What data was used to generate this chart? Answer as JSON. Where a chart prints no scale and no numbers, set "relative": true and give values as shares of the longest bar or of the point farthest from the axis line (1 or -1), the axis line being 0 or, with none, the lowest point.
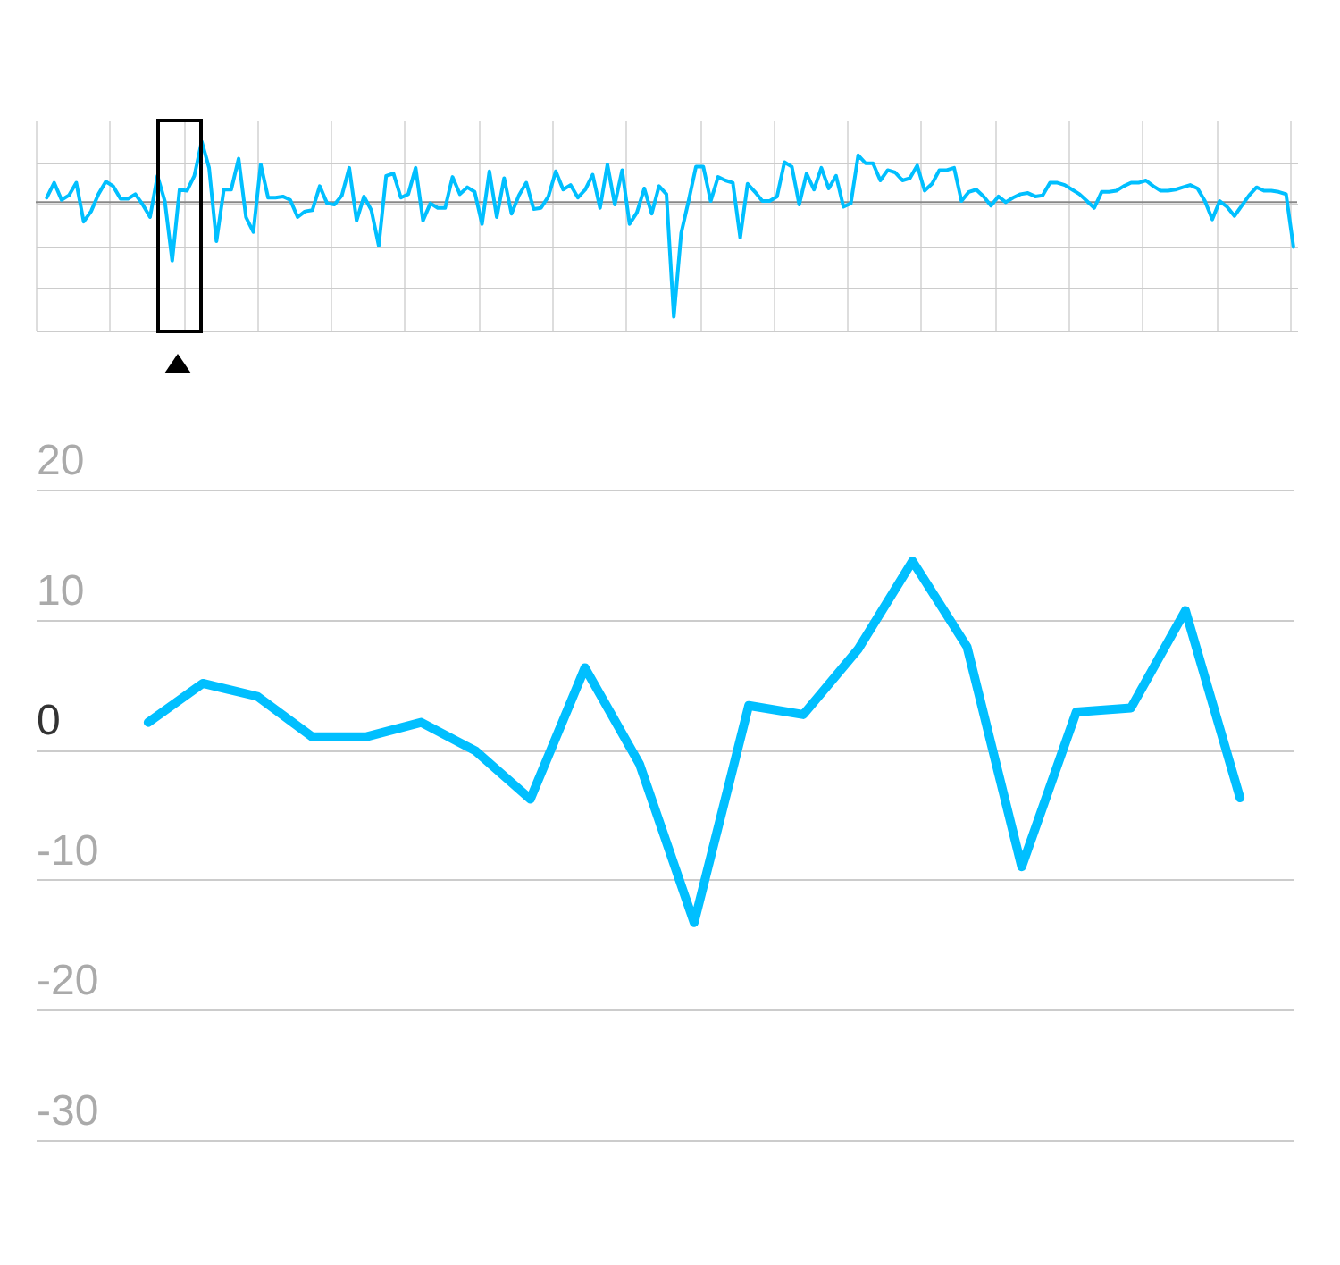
{
  "chart_data": [
    {
      "type": "line",
      "relative": true,
      "grid": true,
      "color": "#00bfff",
      "categories": [
        null,
        null,
        null,
        null,
        null,
        null,
        null,
        null,
        null,
        null,
        null,
        null,
        null,
        null,
        null,
        null,
        null,
        null,
        null,
        null,
        null,
        null,
        null,
        null,
        null,
        null,
        null,
        null,
        null,
        null,
        null,
        null,
        null,
        null,
        null,
        null,
        null,
        null,
        null,
        null,
        null,
        null,
        null,
        null,
        null,
        null,
        null,
        null,
        null,
        null,
        null,
        null,
        null,
        null,
        null,
        null,
        null,
        null,
        null,
        null,
        null,
        null,
        null,
        null,
        null,
        null,
        null,
        null,
        null,
        null,
        null,
        null,
        null,
        null,
        null,
        null,
        null,
        null,
        null,
        null,
        null,
        null,
        null,
        null,
        null,
        null,
        null,
        null,
        null,
        null,
        null,
        null,
        null,
        null,
        null,
        null,
        null,
        null,
        null,
        null,
        null,
        null,
        null,
        null,
        null,
        null,
        null,
        null,
        null,
        null,
        null,
        null,
        null,
        null,
        null,
        null,
        null,
        null,
        null,
        null,
        null,
        null,
        null,
        null,
        null,
        null,
        null,
        null,
        null,
        null,
        null,
        null,
        null,
        null,
        null,
        null,
        null,
        null,
        null,
        null,
        null,
        null,
        null,
        null,
        null,
        null,
        null,
        null,
        null,
        null,
        null,
        null,
        null,
        null,
        null,
        null,
        null,
        null,
        null,
        null,
        null,
        null,
        null,
        null,
        null,
        null,
        null,
        null,
        null,
        null
      ],
      "values": [
        0.04,
        0.17,
        0.02,
        0.06,
        0.17,
        -0.17,
        -0.08,
        0.07,
        0.18,
        0.14,
        0.03,
        0.03,
        0.07,
        -0.02,
        -0.13,
        0.23,
        0.01,
        -0.51,
        0.11,
        0.1,
        0.23,
        0.53,
        0.3,
        -0.34,
        0.11,
        0.11,
        0.38,
        -0.13,
        -0.26,
        0.33,
        0.04,
        0.04,
        0.05,
        0.02,
        -0.13,
        -0.08,
        -0.07,
        0.14,
        -0.01,
        -0.02,
        0.06,
        0.3,
        -0.16,
        0.05,
        -0.07,
        -0.38,
        0.23,
        0.25,
        0.04,
        0.07,
        0.3,
        -0.16,
        -0.01,
        -0.05,
        -0.05,
        0.22,
        0.07,
        0.13,
        0.09,
        -0.19,
        0.27,
        -0.13,
        0.21,
        -0.1,
        0.06,
        0.17,
        -0.06,
        -0.05,
        0.05,
        0.27,
        0.11,
        0.15,
        0.04,
        0.11,
        0.24,
        -0.05,
        0.33,
        -0.02,
        0.28,
        -0.19,
        -0.09,
        0.12,
        -0.1,
        0.14,
        0.07,
        -1,
        -0.27,
        0.01,
        0.31,
        0.31,
        0.01,
        0.22,
        0.19,
        0.17,
        -0.31,
        0.16,
        0.09,
        0.01,
        0.01,
        0.05,
        0.35,
        0.31,
        -0.02,
        0.25,
        0.11,
        0.3,
        0.12,
        0.23,
        -0.04,
        -0.01,
        0.41,
        0.34,
        0.34,
        0.19,
        0.28,
        0.26,
        0.19,
        0.21,
        0.32,
        0.1,
        0.16,
        0.28,
        0.28,
        0.3,
        0.01,
        0.09,
        0.11,
        0.05,
        -0.03,
        0.05,
        0,
        0.04,
        0.07,
        0.08,
        0.05,
        0.06,
        0.17,
        0.17,
        0.15,
        0.11,
        0.07,
        0.01,
        -0.05,
        0.09,
        0.09,
        0.1,
        0.14,
        0.17,
        0.17,
        0.19,
        0.14,
        0.1,
        0.1,
        0.11,
        0.13,
        0.15,
        0.12,
        0.01,
        -0.15,
        0.01,
        -0.04,
        -0.12,
        -0.03,
        0.06,
        0.13,
        0.1,
        0.1,
        0.09,
        0.07,
        -0.39
      ]
    },
    {
      "type": "line",
      "color": "#00bfff",
      "tick_labels": "y",
      "grid": "y",
      "categories": [
        null,
        null,
        null,
        null,
        null,
        null,
        null,
        null,
        null,
        null,
        null,
        null,
        null,
        null,
        null,
        null,
        null,
        null,
        null,
        null,
        null
      ],
      "values": [
        2.1,
        5.1,
        4.1,
        1,
        1,
        2.1,
        -0.1,
        -3.8,
        6.3,
        -1.1,
        -13.3,
        3.4,
        2.7,
        7.7,
        14.5,
        7.9,
        -9,
        2.9,
        3.2,
        10.7,
        -3.7
      ],
      "ylim": [
        -30,
        20
      ],
      "yticks": [
        -30,
        -20,
        -10,
        0,
        10,
        20
      ]
    }
  ]
}
